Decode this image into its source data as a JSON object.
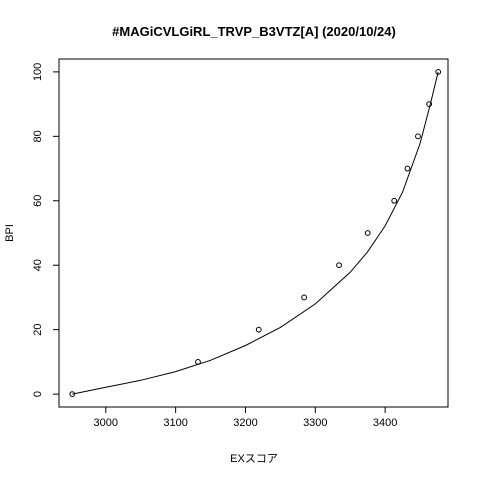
{
  "chart_data": {
    "type": "scatter",
    "title": "#MAGiCVLGiRL_TRVP_B3VTZ[A] (2020/10/24)",
    "xlabel": "EXスコア",
    "ylabel": "BPI",
    "xlim": [
      2933,
      3490
    ],
    "ylim": [
      -4,
      104
    ],
    "x_ticks": [
      3000,
      3100,
      3200,
      3300,
      3400
    ],
    "y_ticks": [
      0,
      20,
      40,
      60,
      80,
      100
    ],
    "grid": false,
    "series": [
      {
        "marker": "open-circle",
        "points": [
          {
            "x": 2952,
            "y": 0
          },
          {
            "x": 3132,
            "y": 10
          },
          {
            "x": 3219,
            "y": 20
          },
          {
            "x": 3284,
            "y": 30
          },
          {
            "x": 3334,
            "y": 40
          },
          {
            "x": 3375,
            "y": 50
          },
          {
            "x": 3413,
            "y": 60
          },
          {
            "x": 3432,
            "y": 70
          },
          {
            "x": 3447,
            "y": 80
          },
          {
            "x": 3463,
            "y": 90
          },
          {
            "x": 3476,
            "y": 100
          }
        ]
      },
      {
        "type": "line",
        "points": [
          {
            "x": 2952,
            "y": 0
          },
          {
            "x": 3000,
            "y": 2.1
          },
          {
            "x": 3050,
            "y": 4.3
          },
          {
            "x": 3100,
            "y": 7.0
          },
          {
            "x": 3150,
            "y": 10.5
          },
          {
            "x": 3200,
            "y": 15.1
          },
          {
            "x": 3250,
            "y": 20.7
          },
          {
            "x": 3300,
            "y": 28.0
          },
          {
            "x": 3350,
            "y": 37.8
          },
          {
            "x": 3375,
            "y": 44.2
          },
          {
            "x": 3400,
            "y": 52.2
          },
          {
            "x": 3425,
            "y": 62.7
          },
          {
            "x": 3450,
            "y": 77.8
          },
          {
            "x": 3465,
            "y": 90.2
          },
          {
            "x": 3476,
            "y": 100
          }
        ]
      }
    ]
  }
}
